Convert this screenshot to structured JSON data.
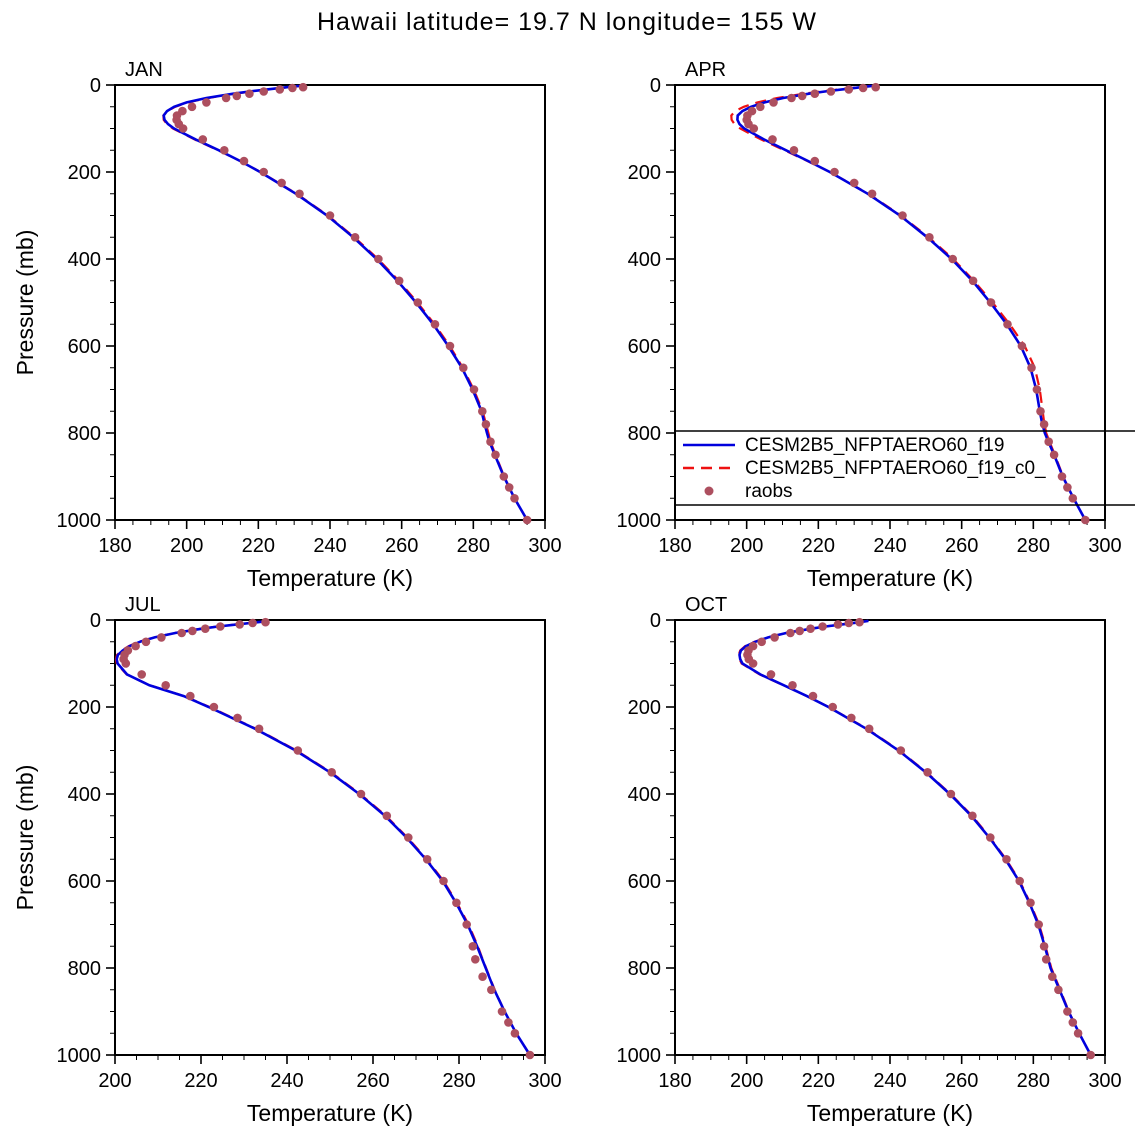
{
  "title": "Hawaii  latitude= 19.7 N longitude= 155 W",
  "legend": {
    "panel_label": "APR",
    "entries": [
      {
        "label": "CESM2B5_NFPTAERO60_f19",
        "style": "solid",
        "color": "#0000dd"
      },
      {
        "label": "CESM2B5_NFPTAERO60_f19_c0_",
        "style": "dashed",
        "color": "#ee1111"
      },
      {
        "label": "raobs",
        "style": "dots",
        "color": "#ad4f5f"
      }
    ]
  },
  "chart_data": {
    "type": "line",
    "y_inverted": true,
    "ylabel": "Pressure (mb)",
    "xlabel": "Temperature (K)",
    "pressures_model": [
      1000,
      950,
      900,
      850,
      820,
      800,
      775,
      750,
      700,
      650,
      600,
      550,
      500,
      450,
      400,
      350,
      300,
      250,
      200,
      175,
      150,
      125,
      100,
      90,
      80,
      70,
      60,
      50,
      40,
      30,
      20,
      15,
      10,
      5,
      2
    ],
    "pressures_obs": [
      1000,
      950,
      925,
      900,
      850,
      820,
      780,
      750,
      700,
      650,
      600,
      550,
      500,
      450,
      400,
      350,
      300,
      250,
      225,
      200,
      175,
      150,
      125,
      100,
      90,
      80,
      70,
      60,
      50,
      40,
      30,
      25,
      20,
      15,
      10,
      7,
      5
    ],
    "panels": [
      {
        "label": "JAN",
        "xlabel": "Temperature (K)",
        "ylabel": "Pressure (mb)",
        "xlim": [
          180,
          300
        ],
        "xticks": [
          180,
          200,
          220,
          240,
          260,
          280,
          300
        ],
        "ylim": [
          0,
          1000
        ],
        "yticks": [
          0,
          200,
          400,
          600,
          800,
          1000
        ],
        "series": [
          {
            "name": "CESM2B5_NFPTAERO60_f19",
            "style": "solid",
            "color": "#0000dd",
            "temps": [
              295,
              291.5,
              288.5,
              286,
              284.5,
              283.8,
              283,
              282.3,
              279.8,
              276.8,
              273,
              268.8,
              264,
              258.8,
              253,
              246.5,
              239.2,
              230.5,
              220.5,
              215,
              209,
              202.5,
              196.5,
              194.8,
              193.8,
              193.6,
              194.5,
              196.5,
              200,
              205.5,
              213,
              217.5,
              222.5,
              228,
              231.5
            ]
          },
          {
            "name": "CESM2B5_NFPTAERO60_f19_c0_",
            "style": "dashed",
            "color": "#ee1111",
            "temps": [
              295,
              291.5,
              288.6,
              286.2,
              284.8,
              284.2,
              283.4,
              282.6,
              280.1,
              277.1,
              273.4,
              269.2,
              264.4,
              259.2,
              253.4,
              246.8,
              239.4,
              230.7,
              220.6,
              215,
              208.8,
              202.2,
              196.2,
              194.5,
              193.6,
              193.5,
              194.6,
              196.8,
              200.4,
              206,
              213.4,
              218,
              223,
              228.4,
              232
            ]
          },
          {
            "name": "raobs",
            "style": "dots",
            "color": "#ad4f5f",
            "temps": [
              295,
              291.5,
              290,
              288.5,
              286.2,
              284.8,
              283.5,
              282.5,
              280.2,
              277.2,
              273.5,
              269.3,
              264.5,
              259.3,
              253.5,
              247,
              240,
              231.5,
              226.5,
              221.5,
              216,
              210.5,
              204.5,
              199,
              197.8,
              197.2,
              197.3,
              198.8,
              201.5,
              205.5,
              211,
              214,
              217.5,
              221.5,
              226,
              229.5,
              232.5
            ]
          }
        ]
      },
      {
        "label": "APR",
        "xlabel": "Temperature (K)",
        "ylabel": "Pressure (mb)",
        "xlim": [
          180,
          300
        ],
        "xticks": [
          180,
          200,
          220,
          240,
          260,
          280,
          300
        ],
        "ylim": [
          0,
          1000
        ],
        "yticks": [
          0,
          200,
          400,
          600,
          800,
          1000
        ],
        "series": [
          {
            "name": "CESM2B5_NFPTAERO60_f19",
            "style": "solid",
            "color": "#0000dd",
            "temps": [
              294.5,
              291.2,
              288.2,
              285.8,
              284.2,
              283.2,
              282.4,
              281.8,
              280.8,
              279.2,
              276.5,
              272.6,
              268,
              263,
              257.2,
              250.4,
              242.8,
              233.8,
              223.2,
              217.2,
              211,
              204.8,
              199.3,
              198,
              197.4,
              197.5,
              198.8,
              201.2,
              205,
              210.2,
              217.4,
              221.8,
              226.6,
              232,
              235
            ]
          },
          {
            "name": "CESM2B5_NFPTAERO60_f19_c0_",
            "style": "dashed",
            "color": "#ee1111",
            "temps": [
              294.5,
              291.2,
              288.3,
              286,
              284.5,
              283.6,
              283,
              282.6,
              281.8,
              280.4,
              277.6,
              273.4,
              268.6,
              263.4,
              257.6,
              250.8,
              243,
              234,
              223.2,
              217,
              210.6,
              204,
              198.2,
              196.6,
              195.8,
              195.7,
              196.8,
              199.2,
              203,
              208.6,
              216,
              220.6,
              225.6,
              231.2,
              234.4
            ]
          },
          {
            "name": "raobs",
            "style": "dots",
            "color": "#ad4f5f",
            "temps": [
              294.5,
              291,
              289.5,
              288,
              285.8,
              284.3,
              283,
              282,
              281,
              279.5,
              276.8,
              272.8,
              268.2,
              263.2,
              257.5,
              251,
              243.5,
              235,
              230,
              224.5,
              219,
              213.2,
              207.2,
              202,
              200.5,
              200,
              200.2,
              201.5,
              203.8,
              207.5,
              212.5,
              215.5,
              219,
              223.5,
              228.5,
              232.5,
              236
            ]
          }
        ]
      },
      {
        "label": "JUL",
        "xlabel": "Temperature (K)",
        "ylabel": "Pressure (mb)",
        "xlim": [
          200,
          300
        ],
        "xticks": [
          200,
          220,
          240,
          260,
          280,
          300
        ],
        "ylim": [
          0,
          1000
        ],
        "yticks": [
          0,
          200,
          400,
          600,
          800,
          1000
        ],
        "series": [
          {
            "name": "CESM2B5_NFPTAERO60_f19",
            "style": "solid",
            "color": "#0000dd",
            "temps": [
              296.5,
              293.3,
              290.6,
              288.2,
              287,
              286.2,
              285.2,
              284.2,
              282,
              279.3,
              276.2,
              272.3,
              267.8,
              262.8,
              256.8,
              250,
              242,
              232.6,
              221.8,
              216,
              208,
              202.8,
              200.6,
              200.4,
              200.7,
              201.8,
              203.4,
              205.8,
              209.2,
              214,
              220.2,
              224,
              228.4,
              233.2,
              235.8
            ]
          },
          {
            "name": "CESM2B5_NFPTAERO60_f19_c0_",
            "style": "dashed",
            "color": "#ee1111",
            "temps": [
              296.5,
              293.3,
              290.6,
              288.3,
              287.1,
              286.3,
              285.3,
              284.4,
              282.2,
              279.5,
              276.4,
              272.5,
              268,
              263,
              257,
              250.2,
              242.2,
              232.8,
              222,
              216.1,
              208.1,
              202.7,
              200.4,
              200.2,
              200.5,
              201.6,
              203.2,
              205.6,
              209,
              213.8,
              220,
              223.8,
              228.2,
              233,
              235.6
            ]
          },
          {
            "name": "raobs",
            "style": "dots",
            "color": "#ad4f5f",
            "temps": [
              296.5,
              293,
              291.5,
              290,
              287.5,
              285.5,
              283.8,
              283.2,
              281.8,
              279.4,
              276.4,
              272.6,
              268.2,
              263.2,
              257.2,
              250.4,
              242.5,
              233.5,
              228.5,
              223,
              217.5,
              211.8,
              206.2,
              202.5,
              202,
              202.2,
              203,
              204.8,
              207.2,
              210.8,
              215.5,
              218,
              221,
              224.5,
              229,
              232,
              235
            ]
          }
        ]
      },
      {
        "label": "OCT",
        "xlabel": "Temperature (K)",
        "ylabel": "Pressure (mb)",
        "xlim": [
          180,
          300
        ],
        "xticks": [
          180,
          200,
          220,
          240,
          260,
          280,
          300
        ],
        "ylim": [
          0,
          1000
        ],
        "yticks": [
          0,
          200,
          400,
          600,
          800,
          1000
        ],
        "series": [
          {
            "name": "CESM2B5_NFPTAERO60_f19",
            "style": "solid",
            "color": "#0000dd",
            "temps": [
              296,
              292.8,
              289.8,
              287.3,
              285.8,
              284.8,
              284,
              283.2,
              281.4,
              278.9,
              276,
              272.2,
              267.7,
              262.7,
              256.7,
              250,
              242.4,
              233.4,
              222.8,
              216.8,
              210.4,
              203.8,
              198.8,
              198.2,
              198,
              198.4,
              199.8,
              202.4,
              206,
              211,
              218,
              222,
              226.6,
              231.6,
              234
            ]
          },
          {
            "name": "CESM2B5_NFPTAERO60_f19_c0_",
            "style": "dashed",
            "color": "#ee1111",
            "temps": [
              296,
              292.8,
              289.9,
              287.5,
              286,
              285,
              284.2,
              283.4,
              281.6,
              279.1,
              276.2,
              272.4,
              267.9,
              262.9,
              256.9,
              250.2,
              242.6,
              233.6,
              222.9,
              216.8,
              210.3,
              203.6,
              198.6,
              198,
              197.8,
              198.2,
              199.6,
              202.2,
              205.8,
              210.8,
              217.8,
              221.8,
              226.4,
              231.4,
              233.8
            ]
          },
          {
            "name": "raobs",
            "style": "dots",
            "color": "#ad4f5f",
            "temps": [
              296,
              292.5,
              291,
              289.5,
              287,
              285.3,
              283.6,
              283,
              281.5,
              279.2,
              276.2,
              272.5,
              268,
              263,
              257,
              250.5,
              243,
              234.2,
              229.2,
              224,
              218.5,
              212.8,
              206.8,
              201.8,
              200.6,
              200.2,
              200.5,
              201.8,
              204.2,
              207.8,
              212.2,
              214.8,
              217.8,
              221.2,
              225.5,
              228.5,
              231.5
            ]
          }
        ]
      }
    ]
  }
}
